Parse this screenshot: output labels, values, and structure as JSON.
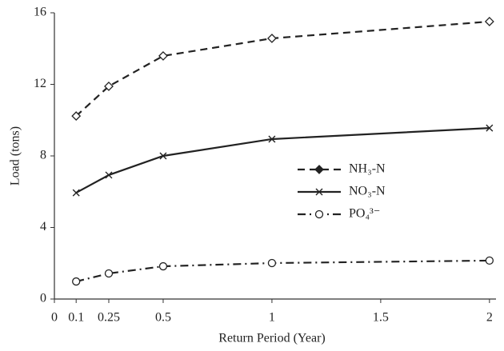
{
  "chart_data": {
    "type": "line",
    "x_label": "Return Period (Year)",
    "y_label": "Load (tons)",
    "x": [
      0.1,
      0.25,
      0.5,
      1,
      2
    ],
    "series": [
      {
        "name": "NH₃-N",
        "color": "#222222",
        "marker": "diamond",
        "line_style": "dashed",
        "values": [
          10.23,
          11.89,
          13.59,
          14.57,
          15.51
        ]
      },
      {
        "name": "NO₃-N",
        "color": "#222222",
        "marker": "x",
        "line_style": "solid",
        "values": [
          5.94,
          6.93,
          8.0,
          8.94,
          9.56
        ]
      },
      {
        "name": "PO₄³⁻",
        "color": "#222222",
        "marker": "circle",
        "line_style": "dashdot",
        "values": [
          0.98,
          1.43,
          1.83,
          2.01,
          2.15
        ]
      }
    ],
    "xlim": [
      0,
      2.03
    ],
    "xticks": [
      0,
      0.1,
      0.25,
      0.5,
      1,
      1.5,
      2
    ],
    "ylim": [
      0,
      16
    ],
    "yticks": [
      0,
      4,
      8,
      12,
      16
    ],
    "grid": false,
    "legend": "center-right"
  }
}
